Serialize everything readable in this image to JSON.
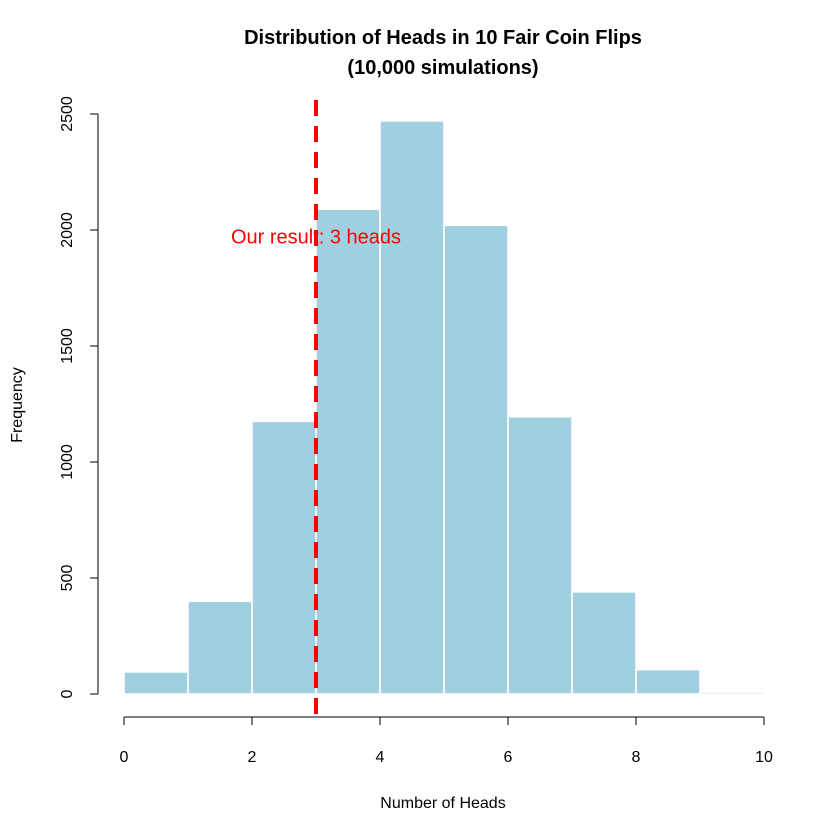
{
  "chart_data": {
    "type": "bar",
    "title": "Distribution of Heads in 10 Fair Coin Flips",
    "subtitle": "(10,000 simulations)",
    "xlabel": "Number of Heads",
    "ylabel": "Frequency",
    "bin_edges": [
      0,
      1,
      2,
      3,
      4,
      5,
      6,
      7,
      8,
      9,
      10
    ],
    "values": [
      95,
      400,
      1175,
      2090,
      2470,
      2020,
      1195,
      440,
      105,
      8
    ],
    "xlim": [
      0,
      10
    ],
    "ylim": [
      0,
      2500
    ],
    "x_ticks": [
      0,
      2,
      4,
      6,
      8,
      10
    ],
    "y_ticks": [
      0,
      500,
      1000,
      1500,
      2000,
      2500
    ],
    "grid": false,
    "bar_color": "#a0d0e0",
    "bar_edge_color": "#ffffff",
    "reference_line": {
      "x": 3,
      "style": "dashed",
      "color": "#ff0000"
    },
    "annotation": {
      "text": "Our result: 3 heads",
      "x": 3,
      "y": 1950,
      "color": "#ff0000"
    }
  }
}
